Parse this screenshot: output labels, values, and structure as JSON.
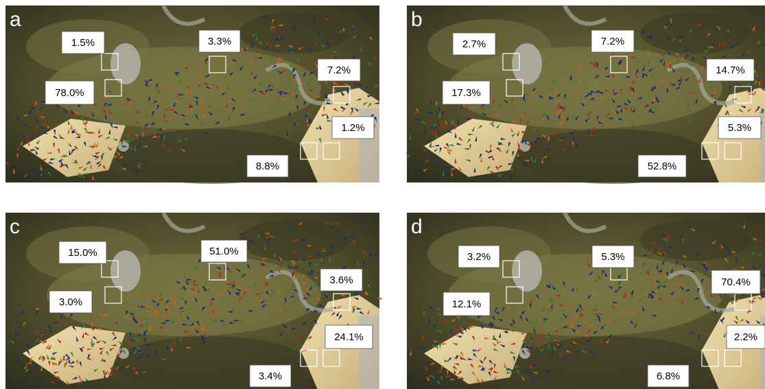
{
  "panels": [
    {
      "letter": "a",
      "labels": [
        "1.5%",
        "3.3%",
        "7.2%",
        "78.0%",
        "1.2%",
        "8.8%"
      ]
    },
    {
      "letter": "b",
      "labels": [
        "2.7%",
        "7.2%",
        "14.7%",
        "17.3%",
        "5.3%",
        "52.8%"
      ]
    },
    {
      "letter": "c",
      "labels": [
        "15.0%",
        "51.0%",
        "3.6%",
        "3.0%",
        "24.1%",
        "3.4%"
      ]
    },
    {
      "letter": "d",
      "labels": [
        "3.2%",
        "5.3%",
        "70.4%",
        "12.1%",
        "2.2%",
        "6.8%"
      ]
    }
  ]
}
